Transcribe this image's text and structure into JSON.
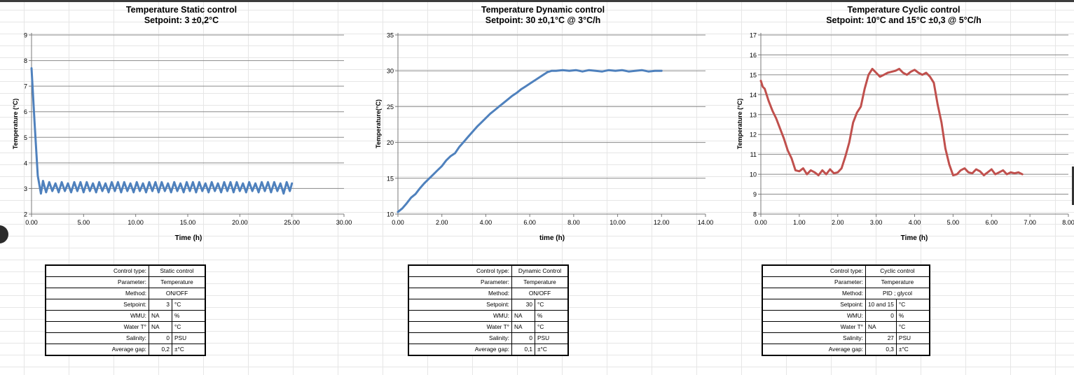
{
  "charts": [
    {
      "title_line1": "Temperature Static control",
      "title_line2": "Setpoint: 3 ±0,2°C",
      "ylabel": "Temperature (°C)",
      "xlabel": "Time (h)",
      "line_color": "#4f81bd",
      "table": {
        "control_type": "Static control",
        "parameter": "Temperature",
        "method": "ON/OFF",
        "setpoint": "3",
        "setpoint_unit": "°C",
        "wmu": "NA",
        "wmu_unit": "%",
        "water_t": "NA",
        "water_t_unit": "°C",
        "salinity": "0",
        "salinity_unit": "PSU",
        "gap": "0,2",
        "gap_unit": "±°C"
      }
    },
    {
      "title_line1": "Temperature Dynamic control",
      "title_line2": "Setpoint: 30 ±0,1°C @ 3°C/h",
      "ylabel": "Temperature(°C)",
      "xlabel": "time (h)",
      "line_color": "#4f81bd",
      "table": {
        "control_type": "Dynamic Control",
        "parameter": "Temperature",
        "method": "ON/OFF",
        "setpoint": "30",
        "setpoint_unit": "°C",
        "wmu": "NA",
        "wmu_unit": "%",
        "water_t": "NA",
        "water_t_unit": "°C",
        "salinity": "0",
        "salinity_unit": "PSU",
        "gap": "0,1",
        "gap_unit": "±°C"
      }
    },
    {
      "title_line1": "Temperature Cyclic control",
      "title_line2": "Setpoint: 10°C and 15°C ±0,3 @ 5°C/h",
      "ylabel": "Temperature (°C)",
      "xlabel": "Time (h)",
      "line_color": "#c0504d",
      "table": {
        "control_type": "Cyclic control",
        "parameter": "Temperature",
        "method": "PID ; glycol",
        "setpoint": "10 and 15",
        "setpoint_unit": "°C",
        "wmu": "0",
        "wmu_unit": "%",
        "water_t": "NA",
        "water_t_unit": "°C",
        "salinity": "27",
        "salinity_unit": "PSU",
        "gap": "0,3",
        "gap_unit": "±°C"
      }
    }
  ],
  "table_labels": {
    "control_type": "Control type:",
    "parameter": "Parameter:",
    "method": "Method:",
    "setpoint": "Setpoint:",
    "wmu": "WMU:",
    "water_t": "Water T°",
    "salinity": "Salinity:",
    "gap": "Average gap:"
  },
  "chart_data": [
    {
      "type": "line",
      "title": "Temperature Static control — Setpoint: 3 ±0,2°C",
      "xlabel": "Time (h)",
      "ylabel": "Temperature (°C)",
      "xlim": [
        0,
        30
      ],
      "ylim": [
        2,
        9
      ],
      "xticks": [
        0,
        5,
        10,
        15,
        20,
        25,
        30
      ],
      "xtick_labels": [
        "0.00",
        "5.00",
        "10.00",
        "15.00",
        "20.00",
        "25.00",
        "30.00"
      ],
      "yticks": [
        2,
        3,
        4,
        5,
        6,
        7,
        8,
        9
      ],
      "ytick_labels": [
        "2",
        "3",
        "4",
        "5",
        "6",
        "7",
        "8",
        "9"
      ],
      "grid": "horizontal",
      "series": [
        {
          "x": [
            0,
            0.3,
            0.6,
            0.9,
            1.1,
            1.4,
            1.7,
            2.0,
            2.3,
            2.6,
            2.9,
            3.2,
            3.5,
            3.8,
            4.1,
            4.4,
            4.7,
            5.0,
            5.3,
            5.6,
            5.9,
            6.2,
            6.5,
            6.8,
            7.1,
            7.4,
            7.7,
            8.0,
            8.3,
            8.6,
            8.9,
            9.2,
            9.5,
            9.8,
            10.1,
            10.4,
            10.7,
            11.0,
            11.3,
            11.6,
            11.9,
            12.2,
            12.5,
            12.8,
            13.1,
            13.4,
            13.7,
            14.0,
            14.3,
            14.6,
            14.9,
            15.2,
            15.5,
            15.8,
            16.1,
            16.4,
            16.7,
            17.0,
            17.3,
            17.6,
            17.9,
            18.2,
            18.5,
            18.8,
            19.1,
            19.4,
            19.7,
            20.0,
            20.3,
            20.6,
            20.9,
            21.2,
            21.5,
            21.8,
            22.1,
            22.4,
            22.7,
            23.0,
            23.3,
            23.6,
            23.9,
            24.2,
            24.5,
            24.8,
            25.0
          ],
          "y": [
            7.7,
            5.5,
            3.5,
            2.8,
            3.3,
            2.85,
            3.25,
            2.9,
            3.2,
            2.85,
            3.25,
            2.9,
            3.2,
            2.85,
            3.25,
            2.9,
            3.25,
            2.85,
            3.25,
            2.9,
            3.2,
            2.85,
            3.25,
            2.9,
            3.2,
            2.85,
            3.25,
            2.9,
            3.25,
            2.85,
            3.25,
            2.9,
            3.2,
            2.85,
            3.25,
            2.9,
            3.2,
            2.85,
            3.25,
            2.9,
            3.25,
            2.85,
            3.25,
            2.9,
            3.2,
            2.85,
            3.25,
            2.9,
            3.2,
            2.85,
            3.25,
            2.9,
            3.25,
            2.85,
            3.25,
            2.9,
            3.2,
            2.85,
            3.25,
            2.9,
            3.2,
            2.85,
            3.25,
            2.9,
            3.25,
            2.85,
            3.25,
            2.9,
            3.2,
            2.85,
            3.25,
            2.9,
            3.2,
            2.85,
            3.25,
            2.9,
            3.25,
            2.85,
            3.25,
            2.9,
            3.2,
            2.8,
            3.25,
            2.9,
            3.2
          ]
        }
      ]
    },
    {
      "type": "line",
      "title": "Temperature Dynamic control — Setpoint: 30 ±0,1°C @ 3°C/h",
      "xlabel": "time (h)",
      "ylabel": "Temperature(°C)",
      "xlim": [
        0,
        14
      ],
      "ylim": [
        10,
        35
      ],
      "xticks": [
        0,
        2,
        4,
        6,
        8,
        10,
        12,
        14
      ],
      "xtick_labels": [
        "0.00",
        "2.00",
        "4.00",
        "6.00",
        "8.00",
        "10.00",
        "12.00",
        "14.00"
      ],
      "yticks": [
        10,
        15,
        20,
        25,
        30,
        35
      ],
      "ytick_labels": [
        "10",
        "15",
        "20",
        "25",
        "30",
        "35"
      ],
      "grid": "horizontal",
      "series": [
        {
          "x": [
            0,
            0.2,
            0.4,
            0.6,
            0.8,
            1.0,
            1.2,
            1.4,
            1.6,
            1.8,
            2.0,
            2.2,
            2.4,
            2.6,
            2.8,
            3.0,
            3.2,
            3.4,
            3.6,
            3.8,
            4.0,
            4.2,
            4.4,
            4.6,
            4.8,
            5.0,
            5.2,
            5.4,
            5.6,
            5.8,
            6.0,
            6.2,
            6.4,
            6.6,
            6.8,
            7.0,
            7.2,
            7.5,
            7.8,
            8.1,
            8.4,
            8.7,
            9.0,
            9.3,
            9.6,
            9.9,
            10.2,
            10.5,
            10.8,
            11.1,
            11.4,
            11.7,
            12.0
          ],
          "y": [
            10.3,
            10.8,
            11.5,
            12.3,
            12.8,
            13.6,
            14.3,
            14.9,
            15.5,
            16.1,
            16.7,
            17.5,
            18.1,
            18.5,
            19.4,
            20.1,
            20.8,
            21.5,
            22.2,
            22.8,
            23.4,
            24.0,
            24.5,
            25.0,
            25.5,
            26.0,
            26.5,
            26.9,
            27.4,
            27.8,
            28.2,
            28.6,
            29.0,
            29.4,
            29.8,
            30.0,
            30.0,
            30.1,
            30.0,
            30.1,
            29.9,
            30.1,
            30.0,
            29.9,
            30.1,
            30.0,
            30.1,
            29.9,
            30.0,
            30.1,
            29.9,
            30.0,
            30.0
          ]
        }
      ]
    },
    {
      "type": "line",
      "title": "Temperature Cyclic control — Setpoint: 10°C and 15°C ±0,3 @ 5°C/h",
      "xlabel": "Time (h)",
      "ylabel": "Temperature (°C)",
      "xlim": [
        0,
        8
      ],
      "ylim": [
        8,
        17
      ],
      "xticks": [
        0,
        1,
        2,
        3,
        4,
        5,
        6,
        7,
        8
      ],
      "xtick_labels": [
        "0.00",
        "1.00",
        "2.00",
        "3.00",
        "4.00",
        "5.00",
        "6.00",
        "7.00",
        "8.00"
      ],
      "yticks": [
        8,
        9,
        10,
        11,
        12,
        13,
        14,
        15,
        16,
        17
      ],
      "ytick_labels": [
        "8",
        "9",
        "10",
        "11",
        "12",
        "13",
        "14",
        "15",
        "16",
        "17"
      ],
      "grid": "horizontal",
      "series": [
        {
          "x": [
            0,
            0.05,
            0.1,
            0.2,
            0.3,
            0.4,
            0.5,
            0.6,
            0.7,
            0.8,
            0.9,
            1.0,
            1.1,
            1.2,
            1.3,
            1.4,
            1.5,
            1.6,
            1.7,
            1.8,
            1.9,
            2.0,
            2.1,
            2.2,
            2.3,
            2.4,
            2.5,
            2.6,
            2.7,
            2.8,
            2.9,
            3.0,
            3.1,
            3.2,
            3.3,
            3.4,
            3.5,
            3.6,
            3.7,
            3.8,
            3.9,
            4.0,
            4.1,
            4.2,
            4.3,
            4.4,
            4.5,
            4.6,
            4.7,
            4.8,
            4.9,
            5.0,
            5.1,
            5.2,
            5.3,
            5.4,
            5.5,
            5.6,
            5.7,
            5.8,
            5.9,
            6.0,
            6.1,
            6.2,
            6.3,
            6.4,
            6.5,
            6.6,
            6.7,
            6.8
          ],
          "y": [
            14.7,
            14.4,
            14.3,
            13.7,
            13.2,
            12.8,
            12.3,
            11.8,
            11.2,
            10.8,
            10.2,
            10.15,
            10.3,
            10.0,
            10.2,
            10.1,
            9.95,
            10.2,
            10.0,
            10.25,
            10.05,
            10.1,
            10.3,
            10.9,
            11.6,
            12.6,
            13.1,
            13.4,
            14.3,
            15.0,
            15.3,
            15.1,
            14.9,
            15.0,
            15.1,
            15.15,
            15.2,
            15.3,
            15.1,
            15.0,
            15.15,
            15.25,
            15.1,
            15.0,
            15.1,
            14.9,
            14.6,
            13.5,
            12.6,
            11.3,
            10.5,
            9.95,
            10.0,
            10.2,
            10.3,
            10.1,
            10.05,
            10.25,
            10.15,
            9.95,
            10.1,
            10.25,
            10.0,
            10.1,
            10.2,
            10.0,
            10.1,
            10.05,
            10.1,
            10.0
          ]
        }
      ]
    }
  ]
}
